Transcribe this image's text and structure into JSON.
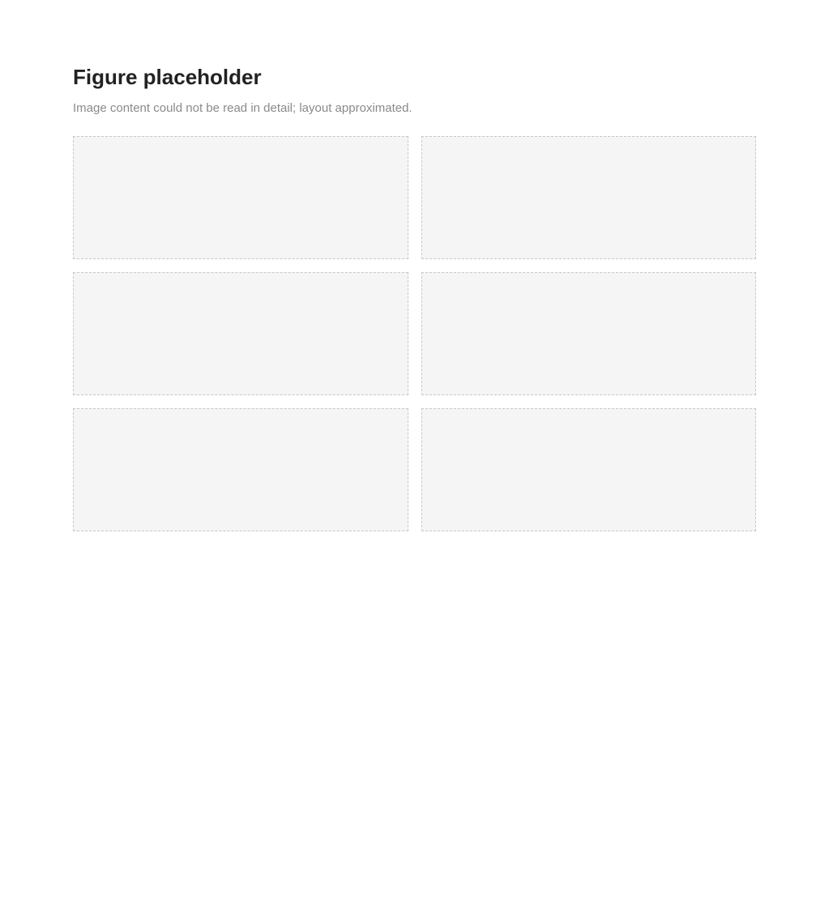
{
  "page": {
    "title": "Figure placeholder",
    "placeholder": "Image content could not be read in detail; layout approximated."
  }
}
